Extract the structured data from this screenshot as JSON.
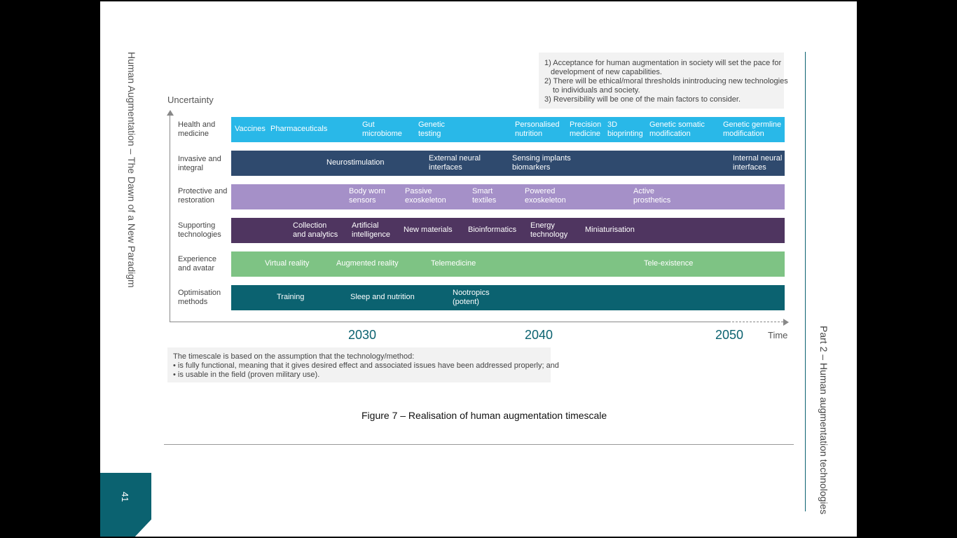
{
  "document": {
    "running_title": "Human Augmentation – The Dawn of a New Paradigm",
    "section_title": "Part 2 – Human augmentation technologies",
    "page_number": "41",
    "caption": "Figure 7 – Realisation of human augmentation timescale"
  },
  "notes_top": [
    "1) Acceptance for human augmentation in society will set the pace for",
    "development of new capabilities.",
    "2) There will be ethical/moral thresholds inintroducing new technologies",
    "to individuals and society.",
    "3) Reversibility will be one of the main factors to consider."
  ],
  "notes_bottom": [
    "The timescale is based on the assumption that the technology/method:",
    "• is fully functional, meaning that it gives desired effect and associated issues have been addressed properly; and",
    "• is usable in the field (proven military use)."
  ],
  "axes": {
    "y_label": "Uncertainty",
    "x_label": "Time",
    "years": [
      "2030",
      "2040",
      "2050"
    ]
  },
  "colors": {
    "health": "#29b8e8",
    "invasive": "#2f4a6e",
    "protective": "#a590c8",
    "supporting": "#4f3560",
    "experience": "#7ec384",
    "optimisation": "#0b6270",
    "page_accent": "#0b6270"
  },
  "rows": [
    {
      "l1": "Health and",
      "l2": "medicine",
      "items": [
        {
          "l1": "Vaccines",
          "l2": ""
        },
        {
          "l1": "Pharmaceuticals",
          "l2": ""
        },
        {
          "l1": "Gut",
          "l2": "microbiome"
        },
        {
          "l1": "Genetic",
          "l2": "testing"
        },
        {
          "l1": "Personalised",
          "l2": "nutrition"
        },
        {
          "l1": "Precision",
          "l2": "medicine"
        },
        {
          "l1": "3D",
          "l2": "bioprinting"
        },
        {
          "l1": "Genetic somatic",
          "l2": "modification"
        },
        {
          "l1": "Genetic germline",
          "l2": "modification"
        }
      ]
    },
    {
      "l1": "Invasive and",
      "l2": "integral",
      "items": [
        {
          "l1": "Neurostimulation",
          "l2": ""
        },
        {
          "l1": "External neural",
          "l2": "interfaces"
        },
        {
          "l1": "Sensing implants",
          "l2": "biomarkers"
        },
        {
          "l1": "Internal neural",
          "l2": "interfaces"
        }
      ]
    },
    {
      "l1": "Protective and",
      "l2": "restoration",
      "items": [
        {
          "l1": "Body worn",
          "l2": "sensors"
        },
        {
          "l1": "Passive",
          "l2": "exoskeleton"
        },
        {
          "l1": "Smart",
          "l2": "textiles"
        },
        {
          "l1": "Powered",
          "l2": "exoskeleton"
        },
        {
          "l1": "Active",
          "l2": "prosthetics"
        }
      ]
    },
    {
      "l1": "Supporting",
      "l2": "technologies",
      "items": [
        {
          "l1": "Collection",
          "l2": "and analytics"
        },
        {
          "l1": "Artificial",
          "l2": "intelligence"
        },
        {
          "l1": "New materials",
          "l2": ""
        },
        {
          "l1": "Bioinformatics",
          "l2": ""
        },
        {
          "l1": "Energy",
          "l2": "technology"
        },
        {
          "l1": "Miniaturisation",
          "l2": ""
        }
      ]
    },
    {
      "l1": "Experience",
      "l2": "and avatar",
      "items": [
        {
          "l1": "Virtual reality",
          "l2": ""
        },
        {
          "l1": "Augmented reality",
          "l2": ""
        },
        {
          "l1": "Telemedicine",
          "l2": ""
        },
        {
          "l1": "Tele-existence",
          "l2": ""
        }
      ]
    },
    {
      "l1": "Optimisation",
      "l2": "methods",
      "items": [
        {
          "l1": "Training",
          "l2": ""
        },
        {
          "l1": "Sleep and nutrition",
          "l2": ""
        },
        {
          "l1": "Nootropics",
          "l2": "(potent)"
        }
      ]
    }
  ]
}
